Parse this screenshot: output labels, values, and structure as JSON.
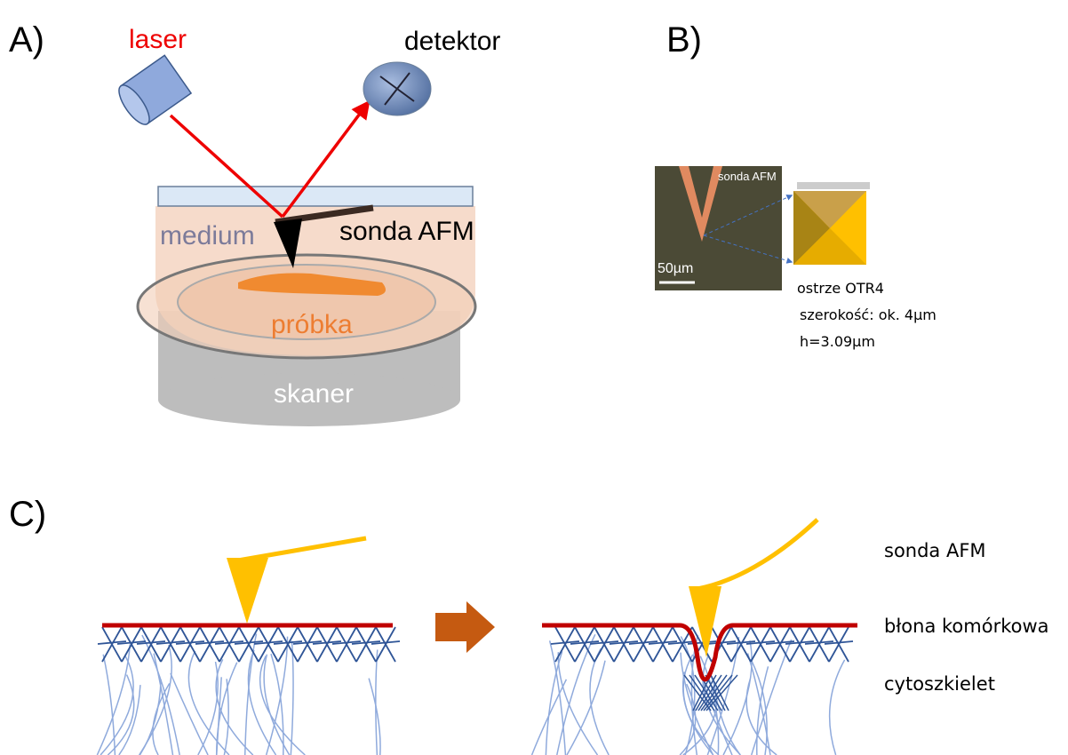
{
  "panel_a": {
    "label": "A)",
    "laser": "laser",
    "detector": "detektor",
    "medium": "medium",
    "probe": "sonda AFM",
    "sample": "próbka",
    "scanner": "skaner"
  },
  "panel_b": {
    "label": "B)",
    "image_label": "sonda AFM",
    "scale": "50µm",
    "tip": "ostrze OTR4",
    "width": "szerokość: ok. 4µm",
    "height": "h=3.09µm"
  },
  "panel_c": {
    "label": "C)",
    "probe": "sonda AFM",
    "membrane": "błona komórkowa",
    "cytoskeleton": "cytoszkielet"
  }
}
